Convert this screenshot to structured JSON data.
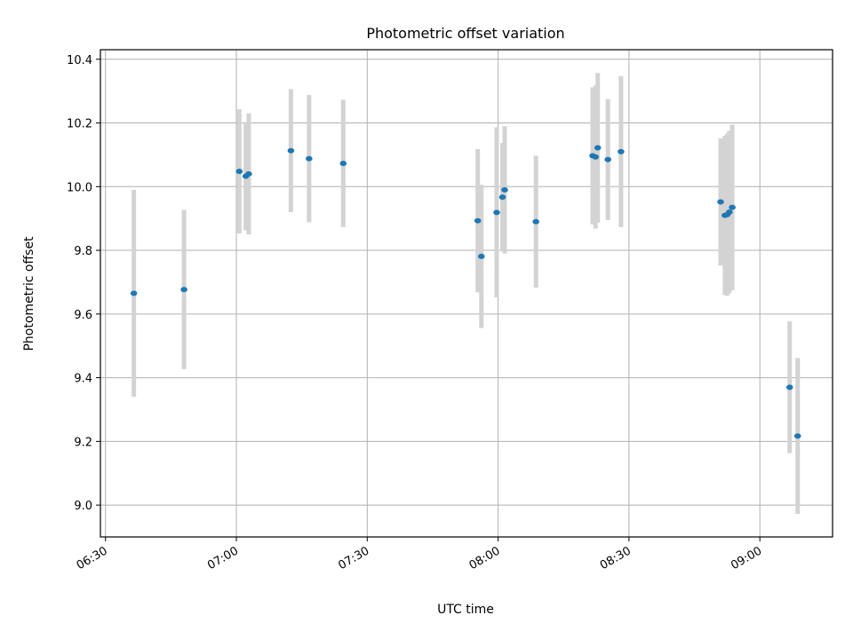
{
  "chart_data": {
    "type": "scatter",
    "title": "Photometric offset variation",
    "xlabel": "UTC time",
    "ylabel": "Photometric offset",
    "x_ticks": [
      "06:30",
      "07:00",
      "07:30",
      "08:00",
      "08:30",
      "09:00"
    ],
    "y_ticks": [
      "9.0",
      "9.2",
      "9.4",
      "9.6",
      "9.8",
      "10.0",
      "10.2",
      "10.4"
    ],
    "xlim": [
      "06:28:50",
      "09:16:40"
    ],
    "ylim": [
      8.9,
      10.43
    ],
    "grid": true,
    "colors": {
      "marker": "#1f77b4",
      "errorbar": "#d3d3d3",
      "grid": "#b0b0b0"
    },
    "series": [
      {
        "points": [
          {
            "x": "06:36:30",
            "y": 9.665,
            "yerr": 0.325
          },
          {
            "x": "06:48:00",
            "y": 9.677,
            "yerr": 0.25
          },
          {
            "x": "07:00:40",
            "y": 10.048,
            "yerr": 0.195
          },
          {
            "x": "07:02:10",
            "y": 10.033,
            "yerr": 0.17
          },
          {
            "x": "07:02:50",
            "y": 10.04,
            "yerr": 0.19
          },
          {
            "x": "07:12:30",
            "y": 10.113,
            "yerr": 0.193
          },
          {
            "x": "07:16:40",
            "y": 10.088,
            "yerr": 0.2
          },
          {
            "x": "07:24:30",
            "y": 10.073,
            "yerr": 0.2
          },
          {
            "x": "07:55:20",
            "y": 9.893,
            "yerr": 0.225
          },
          {
            "x": "07:56:10",
            "y": 9.781,
            "yerr": 0.225
          },
          {
            "x": "07:59:40",
            "y": 9.919,
            "yerr": 0.267
          },
          {
            "x": "08:01:00",
            "y": 9.967,
            "yerr": 0.17
          },
          {
            "x": "08:01:30",
            "y": 9.99,
            "yerr": 0.2
          },
          {
            "x": "08:08:40",
            "y": 9.89,
            "yerr": 0.207
          },
          {
            "x": "08:21:40",
            "y": 10.097,
            "yerr": 0.215
          },
          {
            "x": "08:22:20",
            "y": 10.093,
            "yerr": 0.225
          },
          {
            "x": "08:22:50",
            "y": 10.122,
            "yerr": 0.235
          },
          {
            "x": "08:25:10",
            "y": 10.085,
            "yerr": 0.19
          },
          {
            "x": "08:28:10",
            "y": 10.11,
            "yerr": 0.237
          },
          {
            "x": "08:51:00",
            "y": 9.952,
            "yerr": 0.2
          },
          {
            "x": "08:52:00",
            "y": 9.91,
            "yerr": 0.25
          },
          {
            "x": "08:52:30",
            "y": 9.912,
            "yerr": 0.255
          },
          {
            "x": "08:53:00",
            "y": 9.92,
            "yerr": 0.255
          },
          {
            "x": "08:53:40",
            "y": 9.935,
            "yerr": 0.26
          },
          {
            "x": "09:06:50",
            "y": 9.37,
            "yerr": 0.207
          },
          {
            "x": "09:08:40",
            "y": 9.217,
            "yerr": 0.245
          }
        ]
      }
    ]
  }
}
